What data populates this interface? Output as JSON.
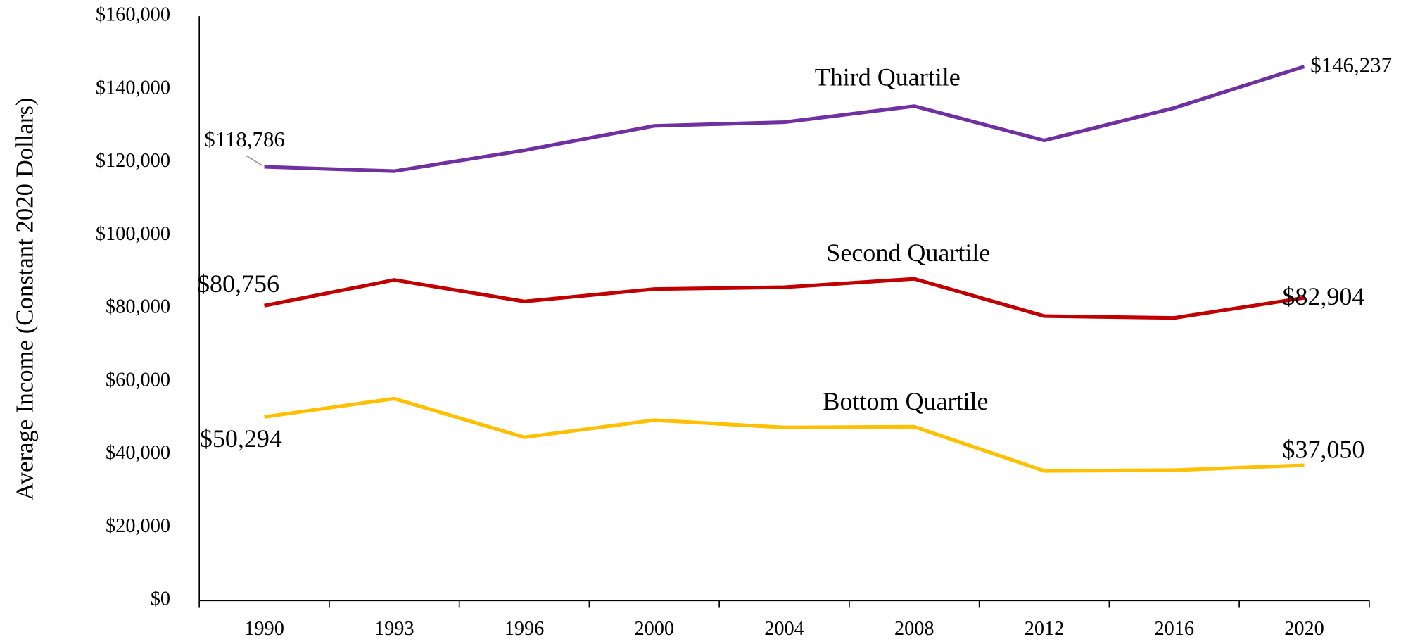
{
  "chart_data": {
    "type": "line",
    "y_axis_label": "Average Income (Constant 2020 Dollars)",
    "categories": [
      "1990",
      "1993",
      "1996",
      "2000",
      "2004",
      "2008",
      "2012",
      "2016",
      "2020"
    ],
    "ylim": [
      0,
      160000
    ],
    "yticks": [
      {
        "value": 0,
        "label": "$0"
      },
      {
        "value": 20000,
        "label": "$20,000"
      },
      {
        "value": 40000,
        "label": "$40,000"
      },
      {
        "value": 60000,
        "label": "$60,000"
      },
      {
        "value": 80000,
        "label": "$80,000"
      },
      {
        "value": 100000,
        "label": "$100,000"
      },
      {
        "value": 120000,
        "label": "$120,000"
      },
      {
        "value": 140000,
        "label": "$140,000"
      },
      {
        "value": 160000,
        "label": "$160,000"
      }
    ],
    "grid": false,
    "series": [
      {
        "name": "Third Quartile",
        "color": "#7030a0",
        "values": [
          118786,
          117600,
          123300,
          130000,
          131000,
          135400,
          126000,
          134900,
          146237
        ],
        "value_labels": [
          "$118,786",
          null,
          null,
          null,
          null,
          null,
          null,
          null,
          "$146,237"
        ]
      },
      {
        "name": "Second Quartile",
        "color": "#c00000",
        "values": [
          80756,
          87800,
          81900,
          85300,
          85800,
          88100,
          77900,
          77400,
          82904
        ],
        "value_labels": [
          "$80,756",
          null,
          null,
          null,
          null,
          null,
          null,
          null,
          "$82,904"
        ]
      },
      {
        "name": "Bottom Quartile",
        "color": "#ffc000",
        "values": [
          50294,
          55300,
          44700,
          49400,
          47400,
          47600,
          35500,
          35700,
          37050
        ],
        "value_labels": [
          "$50,294",
          null,
          null,
          null,
          null,
          null,
          null,
          null,
          "$37,050"
        ]
      }
    ]
  }
}
